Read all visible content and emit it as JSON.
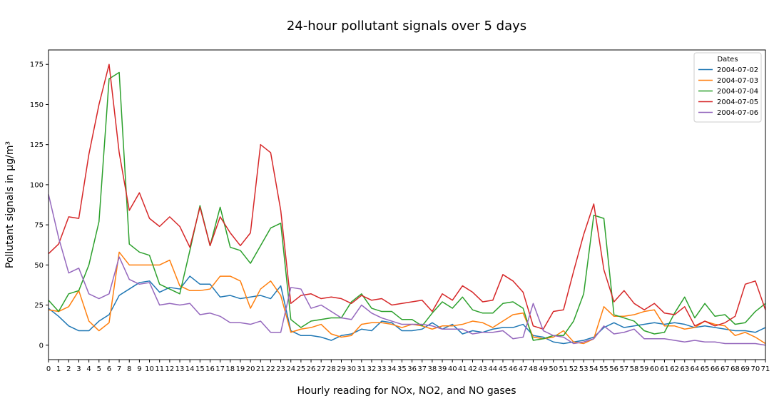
{
  "chart_data": {
    "type": "line",
    "title": "24-hour pollutant signals over 5 days",
    "xlabel": "Hourly reading for NOx, NO2, and NO gases",
    "ylabel": "Pollutant signals in µg/m³",
    "x": [
      0,
      1,
      2,
      3,
      4,
      5,
      6,
      7,
      8,
      9,
      10,
      11,
      12,
      13,
      14,
      15,
      16,
      17,
      18,
      19,
      20,
      21,
      22,
      23,
      24,
      25,
      26,
      27,
      28,
      29,
      30,
      31,
      32,
      33,
      34,
      35,
      36,
      37,
      38,
      39,
      40,
      41,
      42,
      43,
      44,
      45,
      46,
      47,
      48,
      49,
      50,
      51,
      52,
      53,
      54,
      55,
      56,
      57,
      58,
      59,
      60,
      61,
      62,
      63,
      64,
      65,
      66,
      67,
      68,
      69,
      70,
      71
    ],
    "xlim": [
      0,
      71
    ],
    "ylim": [
      -9,
      184
    ],
    "yticks": [
      0,
      25,
      50,
      75,
      100,
      125,
      150,
      175
    ],
    "grid": false,
    "legend": {
      "title": "Dates",
      "position": "top-right"
    },
    "series": [
      {
        "name": "2004-07-02",
        "color": "#1f77b4",
        "values": [
          23,
          18,
          12,
          9,
          9,
          15,
          19,
          31,
          35,
          39,
          40,
          33,
          36,
          35,
          43,
          38,
          38,
          30,
          31,
          29,
          30,
          31,
          29,
          37,
          9,
          6,
          6,
          5,
          3,
          6,
          7,
          10,
          9,
          15,
          14,
          9,
          9,
          10,
          14,
          10,
          13,
          7,
          9,
          8,
          10,
          11,
          11,
          13,
          6,
          5,
          2,
          1,
          2,
          3,
          5,
          11,
          14,
          11,
          12,
          13,
          14,
          13,
          14,
          13,
          11,
          12,
          11,
          10,
          9,
          9,
          8,
          11
        ]
      },
      {
        "name": "2004-07-03",
        "color": "#ff7f0e",
        "values": [
          22,
          21,
          24,
          34,
          15,
          9,
          14,
          58,
          50,
          50,
          50,
          50,
          53,
          37,
          34,
          34,
          35,
          43,
          43,
          40,
          23,
          35,
          40,
          31,
          8,
          10,
          11,
          13,
          7,
          5,
          6,
          13,
          14,
          14,
          13,
          11,
          13,
          12,
          10,
          12,
          12,
          13,
          15,
          14,
          11,
          15,
          19,
          20,
          5,
          4,
          5,
          9,
          2,
          1,
          4,
          24,
          18,
          18,
          19,
          21,
          22,
          12,
          12,
          10,
          11,
          15,
          13,
          12,
          6,
          8,
          5,
          1
        ]
      },
      {
        "name": "2004-07-04",
        "color": "#2ca02c",
        "values": [
          28,
          21,
          32,
          34,
          50,
          77,
          166,
          170,
          63,
          58,
          56,
          38,
          35,
          32,
          59,
          87,
          62,
          86,
          61,
          59,
          51,
          62,
          73,
          76,
          16,
          11,
          15,
          16,
          17,
          17,
          27,
          32,
          23,
          21,
          21,
          16,
          16,
          12,
          20,
          27,
          23,
          30,
          22,
          20,
          20,
          26,
          27,
          23,
          3,
          4,
          6,
          6,
          15,
          32,
          81,
          79,
          19,
          17,
          15,
          9,
          7,
          8,
          20,
          30,
          17,
          26,
          18,
          19,
          13,
          14,
          21,
          26
        ]
      },
      {
        "name": "2004-07-05",
        "color": "#d62728",
        "values": [
          57,
          63,
          80,
          79,
          119,
          150,
          175,
          120,
          84,
          95,
          79,
          74,
          80,
          74,
          61,
          86,
          62,
          80,
          70,
          62,
          70,
          125,
          120,
          84,
          26,
          31,
          32,
          29,
          30,
          29,
          26,
          31,
          28,
          29,
          25,
          26,
          27,
          28,
          21,
          32,
          28,
          37,
          33,
          27,
          28,
          44,
          40,
          33,
          12,
          10,
          21,
          22,
          46,
          69,
          88,
          47,
          27,
          34,
          26,
          22,
          26,
          20,
          19,
          24,
          12,
          15,
          12,
          14,
          18,
          38,
          40,
          22
        ]
      },
      {
        "name": "2004-07-06",
        "color": "#9467bd",
        "values": [
          94,
          67,
          45,
          48,
          32,
          29,
          32,
          55,
          41,
          38,
          39,
          25,
          26,
          25,
          26,
          19,
          20,
          18,
          14,
          14,
          13,
          15,
          8,
          8,
          36,
          35,
          23,
          25,
          21,
          17,
          16,
          25,
          20,
          17,
          15,
          13,
          13,
          13,
          12,
          10,
          10,
          10,
          7,
          8,
          8,
          9,
          4,
          5,
          26,
          9,
          6,
          5,
          1,
          2,
          4,
          12,
          7,
          8,
          10,
          4,
          4,
          4,
          3,
          2,
          3,
          2,
          2,
          1,
          1,
          1,
          1,
          0
        ]
      }
    ]
  }
}
